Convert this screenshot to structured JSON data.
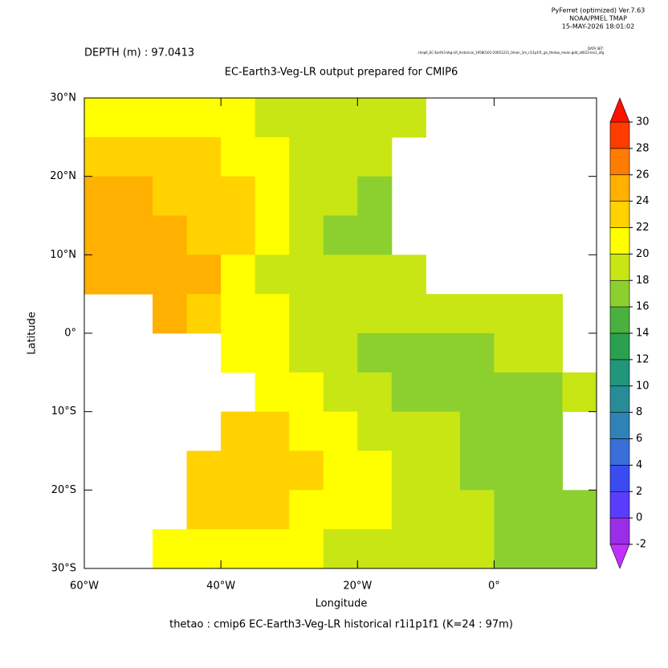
{
  "chart_data": {
    "type": "heatmap",
    "software": "PyFerret (optimized) Ver.7.63",
    "lab": "NOAA/PMEL TMAP",
    "timestamp": "15-MAY-2026 18:01:02",
    "dataset_heading": "DATA SET:",
    "dataset": "cmip6_EC-Earth3-Veg-LR_historical_19580101-20051231_0mon_1m_r1i1p1f1_gn_thetao_mean.gdd_all023-lev1_ofg",
    "subtitle": "DEPTH (m) : 97.0413",
    "title": "EC-Earth3-Veg-LR output prepared for CMIP6",
    "xlabel": "Longitude",
    "ylabel": "Latitude",
    "footer": "thetao : cmip6 EC-Earth3-Veg-LR historical r1i1p1f1   (K=24 : 97m)",
    "xlim": [
      -60,
      15
    ],
    "ylim": [
      -30,
      30
    ],
    "xticks": [
      {
        "value": -60,
        "label": "60°W"
      },
      {
        "value": -40,
        "label": "40°W"
      },
      {
        "value": -20,
        "label": "20°W"
      },
      {
        "value": 0,
        "label": "0°"
      }
    ],
    "yticks": [
      {
        "value": -30,
        "label": "30°S"
      },
      {
        "value": -20,
        "label": "20°S"
      },
      {
        "value": -10,
        "label": "10°S"
      },
      {
        "value": 0,
        "label": "0°"
      },
      {
        "value": 10,
        "label": "10°N"
      },
      {
        "value": 20,
        "label": "20°N"
      },
      {
        "value": 30,
        "label": "30°N"
      }
    ],
    "x": [
      -57.5,
      -52.5,
      -47.5,
      -42.5,
      -37.5,
      -32.5,
      -27.5,
      -22.5,
      -17.5,
      -12.5,
      -7.5,
      -2.5,
      2.5,
      7.5,
      12.5
    ],
    "y": [
      27.5,
      22.5,
      17.5,
      12.5,
      7.5,
      2.5,
      -2.5,
      -7.5,
      -12.5,
      -17.5,
      -22.5,
      -27.5
    ],
    "values": [
      [
        21,
        21,
        21,
        20.5,
        20,
        19.5,
        19,
        19,
        18.5,
        18.5,
        null,
        null,
        null,
        null,
        null
      ],
      [
        23,
        23,
        22,
        22,
        21,
        20,
        19.5,
        19,
        18,
        null,
        null,
        null,
        null,
        null,
        null
      ],
      [
        24.5,
        24,
        23.5,
        23,
        22,
        21,
        19.5,
        18.5,
        17,
        null,
        null,
        null,
        null,
        null,
        null
      ],
      [
        25,
        25,
        24,
        23,
        22,
        20,
        19,
        17.5,
        17,
        null,
        null,
        null,
        null,
        null,
        null
      ],
      [
        24,
        25,
        25,
        24,
        21,
        19,
        18,
        18,
        18,
        18,
        null,
        null,
        null,
        null,
        null
      ],
      [
        null,
        null,
        24,
        23.5,
        21,
        20,
        18.5,
        18,
        18,
        18,
        18,
        18.5,
        18.5,
        18.5,
        null
      ],
      [
        null,
        null,
        null,
        null,
        21,
        20,
        19.5,
        18,
        17,
        17,
        17,
        17.5,
        18,
        18,
        null
      ],
      [
        null,
        null,
        null,
        null,
        null,
        20.5,
        20,
        19,
        18.5,
        17.5,
        17,
        17,
        17.5,
        17.5,
        18
      ],
      [
        null,
        null,
        null,
        null,
        22,
        23,
        21.5,
        20.5,
        19,
        18.5,
        18,
        17.5,
        16.5,
        16,
        null
      ],
      [
        null,
        null,
        null,
        22,
        23,
        23,
        22,
        21,
        20,
        19,
        18.5,
        17.5,
        16.5,
        16.5,
        null
      ],
      [
        null,
        null,
        null,
        22,
        22,
        22,
        21.5,
        20.5,
        20,
        19.5,
        19,
        18,
        17.5,
        17,
        16.5
      ],
      [
        null,
        null,
        20.5,
        21,
        20.5,
        20,
        20,
        19.5,
        19,
        18.5,
        18,
        18,
        17.5,
        17,
        16
      ]
    ],
    "colorbar": {
      "ticks": [
        -2,
        0,
        2,
        4,
        6,
        8,
        10,
        12,
        14,
        16,
        18,
        20,
        22,
        24,
        26,
        28,
        30
      ],
      "colors": [
        "#9a2ee6",
        "#5a3cff",
        "#3a4cf0",
        "#3a6ed8",
        "#2e82b8",
        "#288c96",
        "#20967a",
        "#2aa050",
        "#4cb040",
        "#8cd030",
        "#c8e614",
        "#ffff00",
        "#ffd200",
        "#ffb000",
        "#ff7c00",
        "#ff3c00"
      ],
      "under_color": "#c030ff",
      "over_color": "#ff1000"
    }
  }
}
